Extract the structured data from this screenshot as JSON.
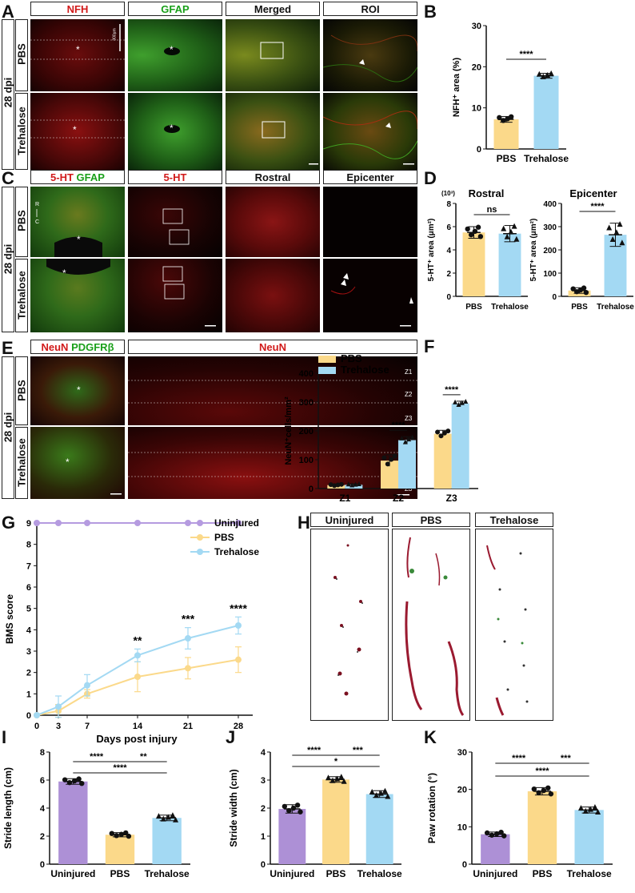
{
  "panels": {
    "A": {
      "letter": "A",
      "headers": [
        "NFH",
        "GFAP",
        "Merged",
        "ROI"
      ],
      "time": "28 dpi",
      "rows": [
        "PBS",
        "Trehalose"
      ],
      "scale": "300μm"
    },
    "B": {
      "letter": "B",
      "ylabel": "NFH⁺ area (%)",
      "sig": "****"
    },
    "C": {
      "letter": "C",
      "header1_a": "5-HT",
      "header1_b": "GFAP",
      "headers": [
        "5-HT",
        "Rostral",
        "Epicenter"
      ],
      "time": "28 dpi",
      "rows": [
        "PBS",
        "Trehalose"
      ],
      "axis_r": "R",
      "axis_c": "C"
    },
    "D": {
      "letter": "D",
      "title_left": "Rostral",
      "title_right": "Epicenter",
      "ylabel": "5-HT⁺ area (μm²)",
      "exp": "(10³)",
      "sig_left": "ns",
      "sig_right": "****"
    },
    "E": {
      "letter": "E",
      "header1_a": "NeuN",
      "header1_b": "PDGFRβ",
      "header2": "NeuN",
      "time": "28 dpi",
      "rows": [
        "PBS",
        "Trehalose"
      ],
      "zones": [
        "Z1",
        "Z2",
        "Z3"
      ]
    },
    "F": {
      "letter": "F",
      "ylabel": "NeuN⁺cells/mm²",
      "sig": "****"
    },
    "G": {
      "letter": "G",
      "ylabel": "BMS score",
      "xlabel": "Days post injury"
    },
    "H": {
      "letter": "H",
      "headers": [
        "Uninjured",
        "PBS",
        "Trehalose"
      ]
    },
    "I": {
      "letter": "I",
      "ylabel": "Stride length (cm)"
    },
    "J": {
      "letter": "J",
      "ylabel": "Stride width (cm)"
    },
    "K": {
      "letter": "K",
      "ylabel": "Paw rotation (°)"
    }
  },
  "colors": {
    "pbs": "#fbd98a",
    "trehalose": "#a3d9f3",
    "uninjured": "#ad90d6",
    "uninjured_line": "#b59be0"
  },
  "chart_data": [
    {
      "id": "B",
      "type": "bar",
      "categories": [
        "PBS",
        "Trehalose"
      ],
      "values": [
        7.2,
        17.8
      ],
      "errors": [
        0.7,
        0.6
      ],
      "ylim": [
        0,
        30
      ],
      "yticks": [
        0,
        10,
        20,
        30
      ],
      "ylabel": "NFH⁺ area (%)",
      "sig": [
        {
          "from": 0,
          "to": 1,
          "label": "****"
        }
      ]
    },
    {
      "id": "D1",
      "type": "bar",
      "title": "Rostral",
      "categories": [
        "PBS",
        "Trehalose"
      ],
      "values": [
        5.5,
        5.4
      ],
      "errors": [
        0.5,
        0.7
      ],
      "ylim": [
        0,
        8
      ],
      "yticks": [
        0,
        2,
        4,
        6,
        8
      ],
      "ylabel": "5-HT⁺ area (μm²)",
      "scale_note": "(10³)",
      "sig": [
        {
          "from": 0,
          "to": 1,
          "label": "ns"
        }
      ]
    },
    {
      "id": "D2",
      "type": "bar",
      "title": "Epicenter",
      "categories": [
        "PBS",
        "Trehalose"
      ],
      "values": [
        25,
        265
      ],
      "errors": [
        12,
        50
      ],
      "ylim": [
        0,
        400
      ],
      "yticks": [
        0,
        100,
        200,
        300,
        400
      ],
      "ylabel": "5-HT⁺ area (μm²)",
      "sig": [
        {
          "from": 0,
          "to": 1,
          "label": "****"
        }
      ]
    },
    {
      "id": "F",
      "type": "bar",
      "categories": [
        "Z1",
        "Z2",
        "Z3"
      ],
      "series": [
        {
          "name": "PBS",
          "values": [
            12,
            97,
            190
          ],
          "errors": [
            3,
            20,
            12
          ]
        },
        {
          "name": "Trehalose",
          "values": [
            13,
            168,
            295
          ],
          "errors": [
            3,
            12,
            8
          ]
        }
      ],
      "ylim": [
        0,
        400
      ],
      "yticks": [
        0,
        100,
        200,
        300,
        400
      ],
      "ylabel": "NeuN⁺cells/mm²",
      "legend": [
        "PBS",
        "Trehalose"
      ],
      "sig": [
        {
          "cat": 1,
          "label": "****"
        },
        {
          "cat": 2,
          "label": "****"
        }
      ]
    },
    {
      "id": "G",
      "type": "line",
      "x": [
        0,
        3,
        7,
        14,
        21,
        28
      ],
      "series": [
        {
          "name": "Uninjured",
          "values": [
            9,
            9,
            9,
            9,
            9,
            9
          ],
          "errors": [
            0,
            0,
            0,
            0,
            0,
            0
          ]
        },
        {
          "name": "PBS",
          "values": [
            0,
            0.2,
            1.0,
            1.8,
            2.2,
            2.6
          ],
          "errors": [
            0,
            0.3,
            0.2,
            0.7,
            0.5,
            0.6
          ]
        },
        {
          "name": "Trehalose",
          "values": [
            0,
            0.4,
            1.4,
            2.8,
            3.6,
            4.2
          ],
          "errors": [
            0,
            0.5,
            0.5,
            0.3,
            0.5,
            0.4
          ]
        }
      ],
      "ylim": [
        0,
        9
      ],
      "yticks": [
        0,
        1,
        2,
        3,
        4,
        5,
        6,
        7,
        8,
        9
      ],
      "xlabel": "Days post injury",
      "ylabel": "BMS score",
      "legend": [
        "Uninjured",
        "PBS",
        "Trehalose"
      ],
      "sig": [
        {
          "x": 14,
          "label": "**"
        },
        {
          "x": 21,
          "label": "***"
        },
        {
          "x": 28,
          "label": "****"
        }
      ]
    },
    {
      "id": "I",
      "type": "bar",
      "categories": [
        "Uninjured",
        "PBS",
        "Trehalose"
      ],
      "values": [
        5.9,
        2.1,
        3.3
      ],
      "errors": [
        0.2,
        0.15,
        0.2
      ],
      "ylim": [
        0,
        8
      ],
      "yticks": [
        0,
        2,
        4,
        6,
        8
      ],
      "ylabel": "Stride length (cm)",
      "sig": [
        {
          "from": 0,
          "to": 1,
          "label": "****"
        },
        {
          "from": 1,
          "to": 2,
          "label": "**"
        },
        {
          "from": 0,
          "to": 2,
          "label": "****"
        }
      ]
    },
    {
      "id": "J",
      "type": "bar",
      "categories": [
        "Uninjured",
        "PBS",
        "Trehalose"
      ],
      "values": [
        1.97,
        3.02,
        2.5
      ],
      "errors": [
        0.15,
        0.1,
        0.12
      ],
      "ylim": [
        0,
        4
      ],
      "yticks": [
        0,
        1,
        2,
        3,
        4
      ],
      "ylabel": "Stride width (cm)",
      "sig": [
        {
          "from": 0,
          "to": 1,
          "label": "****"
        },
        {
          "from": 1,
          "to": 2,
          "label": "***"
        },
        {
          "from": 0,
          "to": 2,
          "label": "*"
        }
      ]
    },
    {
      "id": "K",
      "type": "bar",
      "categories": [
        "Uninjured",
        "PBS",
        "Trehalose"
      ],
      "values": [
        8,
        19.5,
        14.5
      ],
      "errors": [
        0.6,
        1.0,
        0.8
      ],
      "ylim": [
        0,
        30
      ],
      "yticks": [
        0,
        10,
        20,
        30
      ],
      "ylabel": "Paw rotation (°)",
      "sig": [
        {
          "from": 0,
          "to": 1,
          "label": "****"
        },
        {
          "from": 1,
          "to": 2,
          "label": "***"
        },
        {
          "from": 0,
          "to": 2,
          "label": "****"
        }
      ]
    }
  ]
}
